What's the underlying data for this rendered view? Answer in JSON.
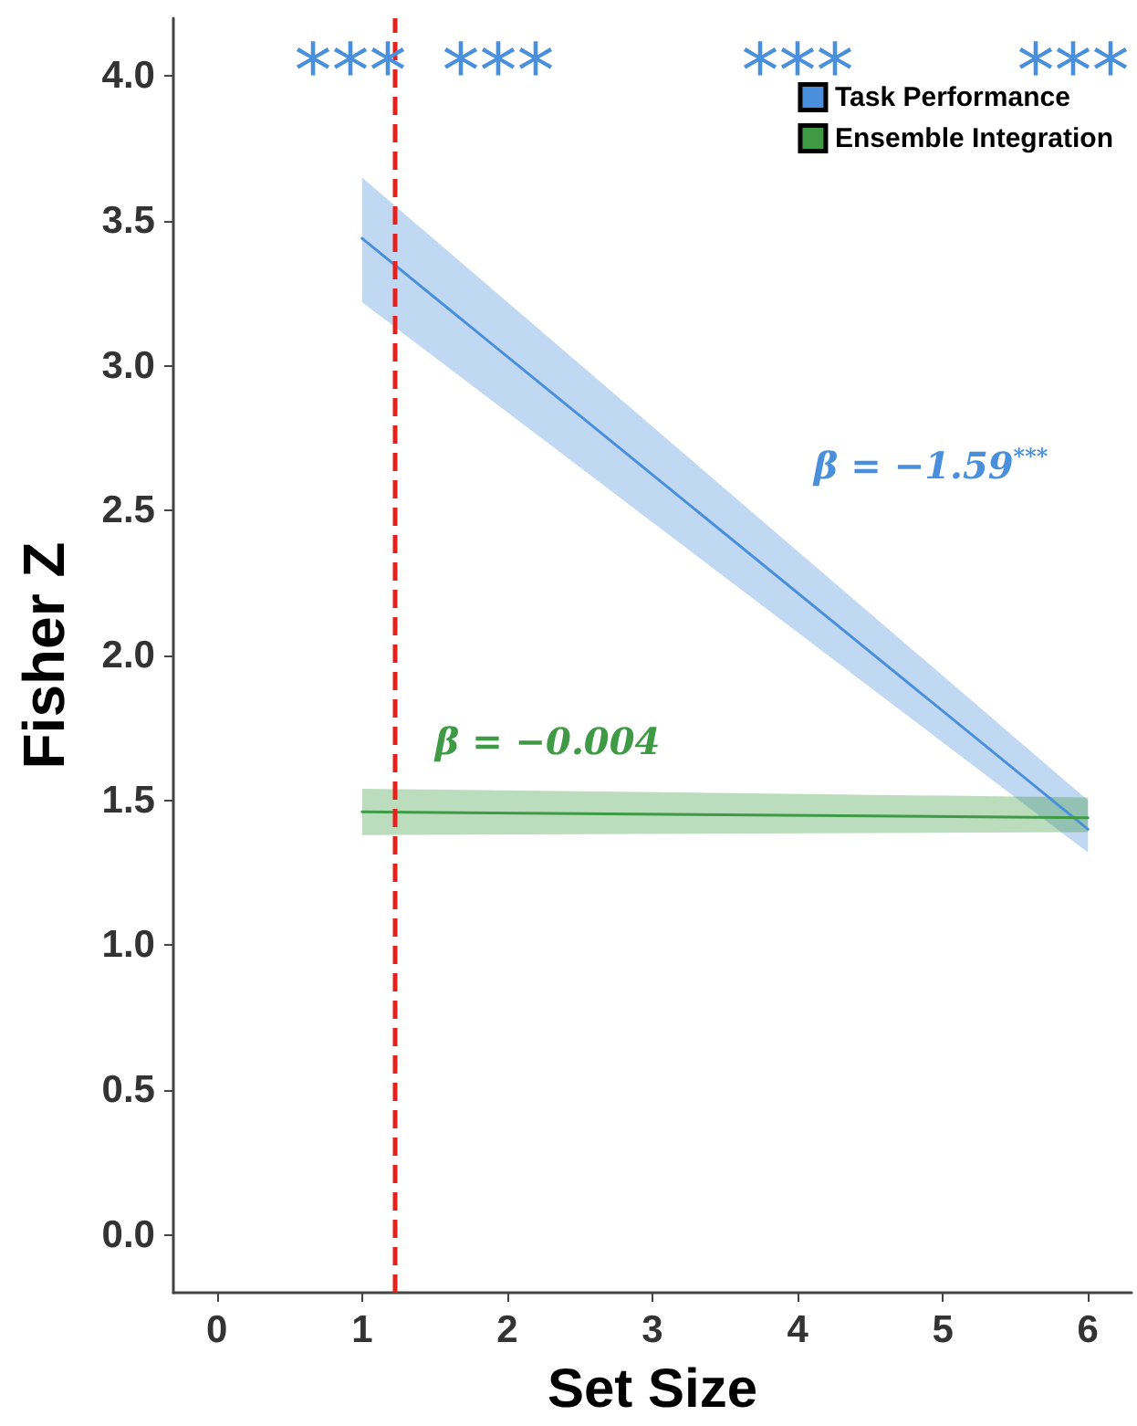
{
  "chart_data": {
    "type": "line",
    "xlabel": "Set Size",
    "ylabel": "Fisher Z",
    "xlim": [
      -0.3,
      6.3
    ],
    "xticks": [
      0,
      1,
      2,
      3,
      4,
      5,
      6
    ],
    "ylim": [
      -0.2,
      4.2
    ],
    "yticks": [
      {
        "value": 0,
        "label": "0.0"
      },
      {
        "value": 0.5,
        "label": "0.5"
      },
      {
        "value": 1,
        "label": "1.0"
      },
      {
        "value": 1.5,
        "label": "1.5"
      },
      {
        "value": 2,
        "label": "2.0"
      },
      {
        "value": 2.5,
        "label": "2.5"
      },
      {
        "value": 3,
        "label": "3.0"
      },
      {
        "value": 3.5,
        "label": "3.5"
      },
      {
        "value": 4,
        "label": "4.0"
      }
    ],
    "x": [
      1,
      6
    ],
    "series": [
      {
        "name": "Task Performance",
        "color": "#4a8fdb",
        "values": [
          3.44,
          1.4
        ],
        "lower": [
          3.22,
          1.32
        ],
        "upper": [
          3.65,
          1.5
        ]
      },
      {
        "name": "Ensemble Integration",
        "color": "#3f9a45",
        "values": [
          1.46,
          1.44
        ],
        "lower": [
          1.38,
          1.39
        ],
        "upper": [
          1.54,
          1.51
        ]
      }
    ],
    "ref_lines": [
      {
        "axis": "x",
        "value": 1.23,
        "color": "#e8201c",
        "line_style": "dashed"
      }
    ],
    "annotations": [
      "***",
      "***",
      "***",
      "***",
      "β = −1.59$^{***}$",
      "β = −0.004"
    ],
    "legend": "top right",
    "grid": false,
    "marker": "none",
    "line_style": "solid"
  }
}
